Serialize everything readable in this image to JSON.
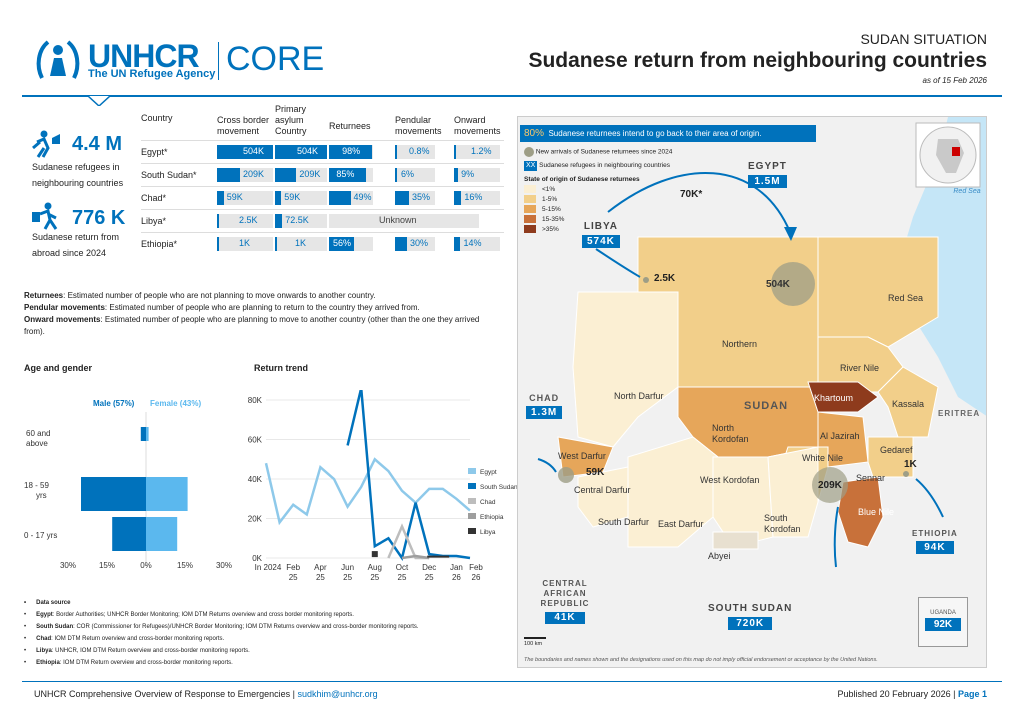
{
  "header": {
    "org": "UNHCR",
    "org_sub": "The UN Refugee Agency",
    "product": "CORE",
    "kicker": "SUDAN SITUATION",
    "title": "Sudanese return from neighbouring countries",
    "date": "as of 15 Feb 2026"
  },
  "kpis": [
    {
      "icon": "refugee-walking-icon",
      "value": "4.4 M",
      "label1": "Sudanese refugees in",
      "label2": "neighbouring countries"
    },
    {
      "icon": "returnee-walking-icon",
      "value": "776 K",
      "label1": "Sudanese return from",
      "label2": "abroad since 2024"
    }
  ],
  "table": {
    "headers": [
      "Country",
      "Cross border movement",
      "Primary asylum Country",
      "Returnees",
      "Pendular movements",
      "Onward movements"
    ],
    "rows": [
      {
        "country": "Egypt*",
        "cross": "504K",
        "cross_frac": 1.0,
        "primary": "504K",
        "primary_frac": 1.0,
        "returnees": "98%",
        "ret_frac": 0.98,
        "pendular": "0.8%",
        "pen_frac": 0.008,
        "onward": "1.2%",
        "onw_frac": 0.012
      },
      {
        "country": "South Sudan*",
        "cross": "209K",
        "cross_frac": 0.41,
        "primary": "209K",
        "primary_frac": 0.41,
        "returnees": "85%",
        "ret_frac": 0.85,
        "pendular": "6%",
        "pen_frac": 0.06,
        "onward": "9%",
        "onw_frac": 0.09
      },
      {
        "country": "Chad*",
        "cross": "59K",
        "cross_frac": 0.12,
        "primary": "59K",
        "primary_frac": 0.12,
        "returnees": "49%",
        "ret_frac": 0.49,
        "pendular": "35%",
        "pen_frac": 0.35,
        "onward": "16%",
        "onw_frac": 0.16
      },
      {
        "country": "Libya*",
        "cross": "2.5K",
        "cross_frac": 0.005,
        "primary": "72.5K",
        "primary_frac": 0.14,
        "returnees": "Unknown",
        "ret_frac": null,
        "pendular": "",
        "pen_frac": null,
        "onward": "",
        "onw_frac": null
      },
      {
        "country": "Ethiopia*",
        "cross": "1K",
        "cross_frac": 0.002,
        "primary": "1K",
        "primary_frac": 0.002,
        "returnees": "56%",
        "ret_frac": 0.56,
        "pendular": "30%",
        "pen_frac": 0.3,
        "onward": "14%",
        "onw_frac": 0.14
      }
    ]
  },
  "definitions": [
    {
      "term": "Returnees",
      "text": ": Estimated number of people who are not planning to move onwards to another country."
    },
    {
      "term": "Pendular movements",
      "text": ": Estimated number of people who are planning to return to the country they arrived from."
    },
    {
      "term": "Onward movements",
      "text": ": Estimated number of people who are planning to move to another country (other than the one they arrived from)."
    }
  ],
  "age_gender": {
    "title": "Age and gender",
    "male_label": "Male (57%)",
    "female_label": "Female (43%)",
    "chart_data": {
      "type": "bar",
      "categories": [
        "60 and above",
        "18 - 59 yrs",
        "0 - 17 yrs"
      ],
      "series": [
        {
          "name": "Male (57%)",
          "values": [
            2,
            25,
            13
          ]
        },
        {
          "name": "Female (43%)",
          "values": [
            1,
            16,
            12
          ]
        }
      ],
      "xticks": [
        "30%",
        "15%",
        "0%",
        "15%",
        "30%"
      ],
      "xlim": [
        -30,
        30
      ]
    },
    "colors": {
      "male": "#0072bc",
      "female": "#5bb8ee"
    }
  },
  "trend": {
    "title": "Return trend",
    "chart_data": {
      "type": "line",
      "x": [
        "In 2024",
        "Feb 25",
        "Apr 25",
        "Jun 25",
        "Aug 25",
        "Oct 25",
        "Dec 25",
        "Jan 26",
        "Feb 26"
      ],
      "ylim": [
        0,
        80000
      ],
      "yticks": [
        "0K",
        "20K",
        "40K",
        "60K",
        "80K"
      ],
      "series": [
        {
          "name": "Egypt",
          "color": "#8ec9ea",
          "points": [
            [
              0,
              48000
            ],
            [
              1,
              18000
            ],
            [
              2,
              27000
            ],
            [
              3,
              22000
            ],
            [
              4,
              46000
            ],
            [
              5,
              40000
            ],
            [
              6,
              26000
            ],
            [
              7,
              36000
            ],
            [
              8,
              50000
            ],
            [
              9,
              44000
            ],
            [
              10,
              34000
            ],
            [
              11,
              28000
            ],
            [
              12,
              35000
            ],
            [
              13,
              35000
            ],
            [
              14,
              30000
            ],
            [
              15,
              24000
            ]
          ]
        },
        {
          "name": "South Sudan",
          "color": "#0072bc",
          "points": [
            [
              6,
              57000
            ],
            [
              7,
              86000
            ],
            [
              8,
              6000
            ],
            [
              9,
              10000
            ],
            [
              10,
              0
            ],
            [
              11,
              28000
            ],
            [
              12,
              2000
            ],
            [
              13,
              1000
            ],
            [
              14,
              1000
            ],
            [
              15,
              0
            ]
          ]
        },
        {
          "name": "Chad",
          "color": "#bdbdbd",
          "points": [
            [
              9,
              0
            ],
            [
              10,
              16000
            ],
            [
              11,
              0
            ],
            [
              12,
              0
            ]
          ]
        },
        {
          "name": "Ethiopia",
          "color": "#9e9e9e",
          "points": [
            [
              10,
              0
            ],
            [
              11,
              1000
            ],
            [
              12,
              0
            ]
          ]
        },
        {
          "name": "Libya",
          "color": "#333333",
          "points": [
            [
              8,
              2000
            ],
            [
              8,
              0
            ]
          ]
        }
      ]
    }
  },
  "sources": {
    "heading": "Data source",
    "items": [
      {
        "k": "Egypt",
        "v": ": Border Authorities; UNHCR Border Monitoring; IOM DTM Returns overview and cross border monitoring reports."
      },
      {
        "k": "South Sudan",
        "v": ": COR (Commissioner for Refugees)/UNHCR Border Monitoring; IOM DTM Returns overview and cross-border monitoring reports."
      },
      {
        "k": "Chad",
        "v": ": IOM DTM Return overview and cross-border monitoring reports."
      },
      {
        "k": "Libya",
        "v": ": UNHCR, IOM DTM Return overview and cross-border monitoring reports."
      },
      {
        "k": "Ethiopia",
        "v": ": IOM DTM Return overview and cross-border monitoring reports."
      }
    ]
  },
  "map": {
    "banner_pct": "80%",
    "banner_text": "Sudanese returnees intend to go back to their area of origin.",
    "legend_new": "New arrivals of Sudanese returnees since 2024",
    "legend_xx": "XX",
    "legend_ref": "Sudanese refugees in neighbouring countries",
    "legend_title": "State of origin of Sudanese returnees",
    "legend_classes": [
      {
        "label": "<1%",
        "color": "#fbefd3"
      },
      {
        "label": "1-5%",
        "color": "#f2cf8a"
      },
      {
        "label": "5-15%",
        "color": "#e6a65a"
      },
      {
        "label": "15-35%",
        "color": "#c8713a"
      },
      {
        "label": ">35%",
        "color": "#8e3b1d"
      }
    ],
    "countries": [
      {
        "name": "EGYPT",
        "value": "1.5M"
      },
      {
        "name": "LIBYA",
        "value": "574K"
      },
      {
        "name": "CHAD",
        "value": "1.3M"
      },
      {
        "name": "CENTRAL AFRICAN REPUBLIC",
        "value": "41K"
      },
      {
        "name": "SOUTH SUDAN",
        "value": "720K"
      },
      {
        "name": "ETHIOPIA",
        "value": "94K"
      },
      {
        "name": "UGANDA",
        "value": "92K"
      }
    ],
    "flows": {
      "egypt": "70K*",
      "egypt_circle": "504K",
      "libya": "2.5K",
      "chad": "59K",
      "south_sudan": "209K",
      "ethiopia": "1K"
    },
    "country_label": "SUDAN",
    "states": [
      "Northern",
      "Red Sea",
      "River Nile",
      "North Darfur",
      "Khartoum",
      "Kassala",
      "North Kordofan",
      "Al Jazirah",
      "Gedaref",
      "West Darfur",
      "White Nile",
      "Sennar",
      "Central Darfur",
      "West Kordofan",
      "Blue Nile",
      "South Darfur",
      "East Darfur",
      "South Kordofan",
      "Abyei"
    ],
    "sea": "Red Sea",
    "eritrea": "ERITREA",
    "scale": "100 km",
    "disclaimer": "The boundaries and names shown and the designations used on this map do not imply official endorsement or acceptance by the United Nations."
  },
  "footer": {
    "left": "UNHCR Comprehensive Overview of Response to Emergencies",
    "email": "sudkhim@unhcr.org",
    "right": "Published 20 February 2026",
    "page": "Page 1"
  }
}
